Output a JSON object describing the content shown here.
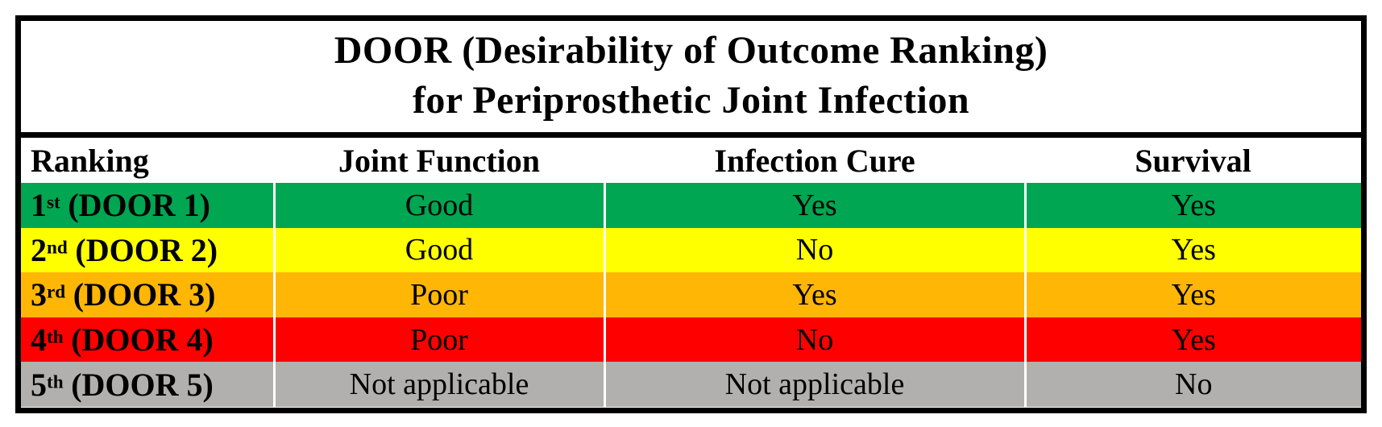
{
  "title": {
    "line1": "DOOR (Desirability of Outcome Ranking)",
    "line2": "for Periprosthetic Joint Infection"
  },
  "columns": {
    "ranking": "Ranking",
    "joint_function": "Joint Function",
    "infection_cure": "Infection Cure",
    "survival": "Survival"
  },
  "rows": [
    {
      "rank_number": "1",
      "rank_ordinal": "st",
      "rank_label": "(DOOR 1)",
      "joint_function": "Good",
      "infection_cure": "Yes",
      "survival": "Yes",
      "row_color": "#00A651"
    },
    {
      "rank_number": "2",
      "rank_ordinal": "nd",
      "rank_label": "(DOOR 2)",
      "joint_function": "Good",
      "infection_cure": "No",
      "survival": "Yes",
      "row_color": "#FFFF00"
    },
    {
      "rank_number": "3",
      "rank_ordinal": "rd",
      "rank_label": "(DOOR 3)",
      "joint_function": "Poor",
      "infection_cure": "Yes",
      "survival": "Yes",
      "row_color": "#FFB605"
    },
    {
      "rank_number": "4",
      "rank_ordinal": "th",
      "rank_label": "(DOOR 4)",
      "joint_function": "Poor",
      "infection_cure": "No",
      "survival": "Yes",
      "row_color": "#FF0000"
    },
    {
      "rank_number": "5",
      "rank_ordinal": "th",
      "rank_label": "(DOOR 5)",
      "joint_function": "Not applicable",
      "infection_cure": "Not applicable",
      "survival": "No",
      "row_color": "#B2B0AE"
    }
  ],
  "colors": {
    "border": "#000000",
    "header_bg": "#FFFFFF",
    "text": "#000000",
    "cell_separator": "#FFFFFF",
    "door1_green": "#00A651",
    "door2_yellow": "#FFFF00",
    "door3_orange": "#FFB605",
    "door4_red": "#FF0000",
    "door5_gray": "#B2B0AE"
  },
  "chart_data": {
    "type": "table",
    "title": "DOOR (Desirability of Outcome Ranking) for Periprosthetic Joint Infection",
    "columns": [
      "Ranking",
      "Joint Function",
      "Infection Cure",
      "Survival"
    ],
    "rows": [
      [
        "1st (DOOR 1)",
        "Good",
        "Yes",
        "Yes"
      ],
      [
        "2nd (DOOR 2)",
        "Good",
        "No",
        "Yes"
      ],
      [
        "3rd (DOOR 3)",
        "Poor",
        "Yes",
        "Yes"
      ],
      [
        "4th (DOOR 4)",
        "Poor",
        "No",
        "Yes"
      ],
      [
        "5th (DOOR 5)",
        "Not applicable",
        "Not applicable",
        "No"
      ]
    ],
    "row_colors": [
      "#00A651",
      "#FFFF00",
      "#FFB605",
      "#FF0000",
      "#B2B0AE"
    ],
    "layout_hints": {
      "row_color_meaning": "desirability from best (green) to worst (gray)",
      "header_style": "bold serif on white",
      "ranking_column_style": "bold, left-aligned with superscript ordinals"
    }
  }
}
